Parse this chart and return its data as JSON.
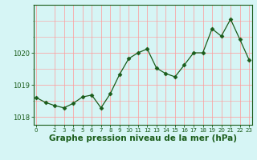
{
  "x": [
    0,
    1,
    2,
    3,
    4,
    5,
    6,
    7,
    8,
    9,
    10,
    11,
    12,
    13,
    14,
    15,
    16,
    17,
    18,
    19,
    20,
    21,
    22,
    23
  ],
  "y": [
    1018.6,
    1018.45,
    1018.35,
    1018.28,
    1018.42,
    1018.62,
    1018.68,
    1018.28,
    1018.72,
    1019.32,
    1019.82,
    1020.0,
    1020.12,
    1019.52,
    1019.35,
    1019.25,
    1019.62,
    1020.0,
    1020.0,
    1020.75,
    1020.52,
    1021.05,
    1020.42,
    1019.78
  ],
  "line_color": "#1a5c1a",
  "marker": "D",
  "marker_size": 2.5,
  "bg_color": "#d6f5f5",
  "grid_color": "#ff9999",
  "axis_color": "#1a5c1a",
  "xlabel": "Graphe pression niveau de la mer (hPa)",
  "xlabel_fontsize": 7.5,
  "yticks": [
    1018,
    1019,
    1020
  ],
  "xticks": [
    0,
    2,
    3,
    4,
    5,
    6,
    7,
    8,
    9,
    10,
    11,
    12,
    13,
    14,
    15,
    16,
    17,
    18,
    19,
    20,
    21,
    22,
    23
  ],
  "ylim": [
    1017.75,
    1021.5
  ],
  "xlim": [
    -0.3,
    23.3
  ],
  "figsize": [
    3.2,
    2.0
  ],
  "dpi": 100
}
